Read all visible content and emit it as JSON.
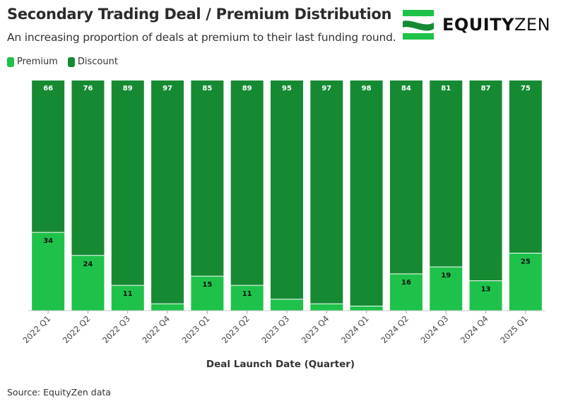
{
  "header": {
    "title": "Secondary Trading Deal / Premium Distribution",
    "subtitle": "An increasing proportion of deals at premium to their last funding round."
  },
  "logo": {
    "text_bold": "EQUITY",
    "text_light": "ZEN",
    "icon": "equityzen-logo-icon"
  },
  "legend": {
    "items": [
      {
        "label": "Premium",
        "color": "#1ec24a"
      },
      {
        "label": "Discount",
        "color": "#168a33"
      }
    ]
  },
  "colors": {
    "premium": "#1ec24a",
    "discount": "#168a33",
    "label_on_discount": "#ffffff",
    "label_on_premium": "#111111"
  },
  "chart_data": {
    "type": "bar",
    "stacked": true,
    "title": "Secondary Trading Deal / Premium Distribution",
    "xlabel": "Deal Launch Date (Quarter)",
    "ylabel": "",
    "ylim": [
      0,
      100
    ],
    "categories": [
      "2022 Q1",
      "2022 Q2",
      "2022 Q3",
      "2022 Q4",
      "2023 Q1",
      "2023 Q2",
      "2023 Q3",
      "2023 Q4",
      "2024 Q1",
      "2024 Q2",
      "2024 Q3",
      "2024 Q4",
      "2025 Q1"
    ],
    "series": [
      {
        "name": "Premium",
        "values": [
          34,
          24,
          11,
          3,
          15,
          11,
          5,
          3,
          2,
          16,
          19,
          13,
          25
        ],
        "labels": [
          "34",
          "24",
          "11",
          "",
          "15",
          "11",
          "",
          "",
          "",
          "16",
          "19",
          "13",
          "25"
        ]
      },
      {
        "name": "Discount",
        "values": [
          66,
          76,
          89,
          97,
          85,
          89,
          95,
          97,
          98,
          84,
          81,
          87,
          75
        ],
        "labels": [
          "66",
          "76",
          "89",
          "97",
          "85",
          "89",
          "95",
          "97",
          "98",
          "84",
          "81",
          "87",
          "75"
        ]
      }
    ],
    "legend": "top-left"
  },
  "axis": {
    "xlabel": "Deal Launch Date (Quarter)"
  },
  "footer": {
    "source": "Source: EquityZen data"
  }
}
